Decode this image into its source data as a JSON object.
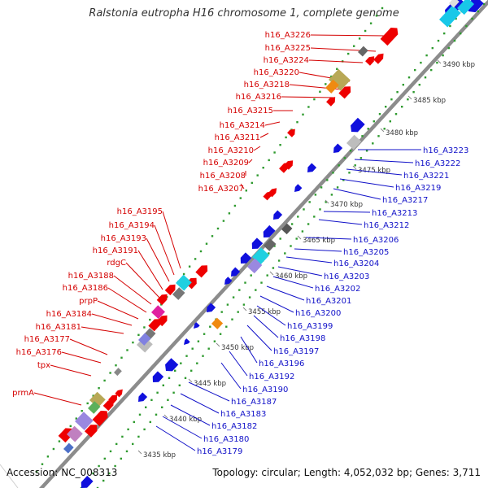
{
  "title": "Ralstonia eutropha H16 chromosome 1, complete genome",
  "accession": "Accession: NC_008313",
  "summary": "Topology: circular; Length: 4,052,032 bp; Genes: 3,711",
  "colors": {
    "backbone": "#8c8c8c",
    "forward_label": "#d40000",
    "reverse_label": "#1010c8",
    "forward_gene": "#ee0000",
    "reverse_gene": "#1010dd",
    "dots": "#2e9a2e"
  },
  "ticks": [
    "3435 kbp",
    "3440 kbp",
    "3445 kbp",
    "3450 kbp",
    "3455 kbp",
    "3460 kbp",
    "3465 kbp",
    "3470 kbp",
    "3475 kbp",
    "3480 kbp",
    "3485 kbp",
    "3490 kbp"
  ],
  "forward_genes": [
    "h16_A3226",
    "h16_A3225",
    "h16_A3224",
    "h16_A3220",
    "h16_A3218",
    "h16_A3216",
    "h16_A3215",
    "h16_A3214",
    "h16_A3211",
    "h16_A3210",
    "h16_A3209",
    "h16_A3208",
    "h16_A3207",
    "h16_A3195",
    "h16_A3194",
    "h16_A3193",
    "h16_A3191",
    "rdgC",
    "h16_A3188",
    "h16_A3186",
    "prpP",
    "h16_A3184",
    "h16_A3181",
    "h16_A3177",
    "h16_A3176",
    "tpx",
    "prmA"
  ],
  "reverse_genes": [
    "h16_A3223",
    "h16_A3222",
    "h16_A3221",
    "h16_A3219",
    "h16_A3217",
    "h16_A3213",
    "h16_A3212",
    "h16_A3206",
    "h16_A3205",
    "h16_A3204",
    "h16_A3203",
    "h16_A3202",
    "h16_A3201",
    "h16_A3200",
    "h16_A3199",
    "h16_A3198",
    "h16_A3197",
    "h16_A3196",
    "h16_A3192",
    "h16_A3190",
    "h16_A3187",
    "h16_A3183",
    "h16_A3182",
    "h16_A3180",
    "h16_A3179"
  ]
}
